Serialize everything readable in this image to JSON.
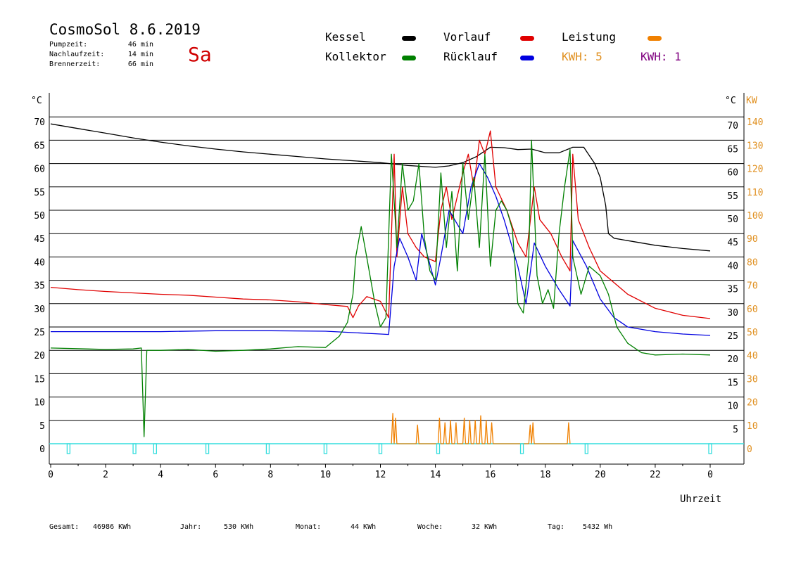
{
  "header": {
    "title": "CosmoSol 8.6.2019",
    "weekday": "Sa",
    "info": [
      {
        "label": "Pumpzeit:",
        "value": "46 min"
      },
      {
        "label": "Nachlaufzeit:",
        "value": "14 min"
      },
      {
        "label": "Brennerzeit:",
        "value": "66 min"
      }
    ]
  },
  "legend": {
    "kessel": {
      "label": "Kessel",
      "color": "#000000"
    },
    "vorlauf": {
      "label": "Vorlauf",
      "color": "#e00000"
    },
    "leistung": {
      "label": "Leistung",
      "color": "#f08000"
    },
    "kollektor": {
      "label": "Kollektor",
      "color": "#008000"
    },
    "ruecklauf": {
      "label": "Rücklauf",
      "color": "#0000e0"
    },
    "kwh_orange": "KWH: 5",
    "kwh_purple": "KWH: 1",
    "kwh_orange_color": "#e09020",
    "kwh_purple_color": "#800080"
  },
  "footer": {
    "gesamt_label": "Gesamt:",
    "gesamt_value": "46986 KWh",
    "jahr_label": "Jahr:",
    "jahr_value": "530 KWh",
    "monat_label": "Monat:",
    "monat_value": "44 KWh",
    "woche_label": "Woche:",
    "woche_value": "32 KWh",
    "tag_label": "Tag:",
    "tag_value": "5432 Wh"
  },
  "chart_data": {
    "type": "line",
    "xlabel": "Uhrzeit",
    "ylabel_left": "°C",
    "ylabel_right_c": "°C",
    "ylabel_right_kw": "KW",
    "xlim": [
      0,
      24
    ],
    "ylim": [
      0,
      70
    ],
    "grid": true,
    "x_ticks": [
      "0",
      "2",
      "4",
      "6",
      "8",
      "10",
      "12",
      "14",
      "16",
      "18",
      "20",
      "22",
      "0"
    ],
    "y_ticks_left": [
      "0",
      "5",
      "10",
      "15",
      "20",
      "25",
      "30",
      "35",
      "40",
      "45",
      "50",
      "55",
      "60",
      "65",
      "70"
    ],
    "y_ticks_right_c": [
      "",
      "5",
      "10",
      "15",
      "20",
      "25",
      "30",
      "35",
      "40",
      "45",
      "50",
      "55",
      "60",
      "65",
      "70"
    ],
    "y_ticks_right_kw": [
      "0",
      "10",
      "20",
      "30",
      "40",
      "50",
      "60",
      "70",
      "80",
      "90",
      "100",
      "110",
      "120",
      "130",
      "140"
    ],
    "series": [
      {
        "name": "Kessel",
        "color": "#000000",
        "x": [
          0,
          1,
          2,
          3,
          4,
          5,
          6,
          7,
          8,
          9,
          10,
          11,
          12,
          12.5,
          13,
          13.5,
          14,
          14.5,
          15,
          15.5,
          16,
          16.5,
          17,
          17.5,
          18,
          18.5,
          19,
          19.4,
          19.8,
          20,
          20.2,
          20.3,
          20.5,
          21,
          22,
          23,
          24
        ],
        "y": [
          68.5,
          67.5,
          66.5,
          65.5,
          64.6,
          63.8,
          63.1,
          62.5,
          62.0,
          61.5,
          61.0,
          60.6,
          60.2,
          59.9,
          59.6,
          59.4,
          59.2,
          59.5,
          60.2,
          61.5,
          63.5,
          63.4,
          63.0,
          63.1,
          62.3,
          62.3,
          63.5,
          63.5,
          60.0,
          57.0,
          51.0,
          45.0,
          44.0,
          43.5,
          42.5,
          41.8,
          41.3
        ]
      },
      {
        "name": "Vorlauf",
        "color": "#e00000",
        "x": [
          0,
          1,
          2,
          3,
          4,
          5,
          6,
          7,
          8,
          9,
          10,
          10.8,
          11,
          11.2,
          11.5,
          12,
          12.3,
          12.5,
          12.6,
          12.8,
          13,
          13.3,
          13.6,
          14,
          14.2,
          14.4,
          14.6,
          15,
          15.2,
          15.4,
          15.6,
          15.8,
          16,
          16.2,
          16.6,
          17,
          17.3,
          17.6,
          17.8,
          18.2,
          18.6,
          18.9,
          19,
          19.2,
          19.6,
          20,
          21,
          22,
          23,
          24
        ],
        "y": [
          33.5,
          33.0,
          32.6,
          32.3,
          32.0,
          31.8,
          31.4,
          31.0,
          30.8,
          30.4,
          29.8,
          29.4,
          27.0,
          29.5,
          31.5,
          30.5,
          27.0,
          62.0,
          40.0,
          55.0,
          45.0,
          42.0,
          40.0,
          39.0,
          50.0,
          55.0,
          48.0,
          58.0,
          62.0,
          55.0,
          65.0,
          62.0,
          67.0,
          55.0,
          50.0,
          43.0,
          40.0,
          55.0,
          48.0,
          45.0,
          40.0,
          37.0,
          62.0,
          48.0,
          42.0,
          37.0,
          32.0,
          29.0,
          27.5,
          26.8
        ]
      },
      {
        "name": "Rücklauf",
        "color": "#0000e0",
        "x": [
          0,
          2,
          4,
          6,
          8,
          10,
          12,
          12.3,
          12.5,
          12.7,
          13,
          13.3,
          13.5,
          14,
          14.2,
          14.5,
          15,
          15.3,
          15.6,
          15.9,
          16.2,
          16.5,
          17,
          17.3,
          17.6,
          18,
          18.5,
          18.9,
          19,
          19.5,
          20,
          20.5,
          21,
          22,
          23,
          24
        ],
        "y": [
          24.0,
          24.0,
          24.0,
          24.2,
          24.2,
          24.1,
          23.5,
          23.4,
          38.0,
          44.0,
          40.0,
          35.0,
          45.0,
          34.0,
          40.0,
          50.0,
          45.0,
          55.0,
          60.0,
          57.0,
          53.0,
          48.0,
          38.0,
          30.0,
          43.0,
          38.0,
          33.0,
          29.5,
          43.5,
          38.0,
          31.0,
          27.0,
          25.0,
          24.0,
          23.5,
          23.2
        ]
      },
      {
        "name": "Kollektor",
        "color": "#008000",
        "x": [
          0,
          2,
          3,
          3.3,
          3.4,
          3.5,
          4,
          5,
          6,
          7,
          8,
          9,
          10,
          10.5,
          10.8,
          11,
          11.1,
          11.3,
          11.5,
          11.8,
          12,
          12.2,
          12.4,
          12.6,
          12.8,
          13,
          13.2,
          13.4,
          13.6,
          13.8,
          14,
          14.2,
          14.4,
          14.6,
          14.8,
          15,
          15.2,
          15.4,
          15.6,
          15.8,
          16,
          16.2,
          16.4,
          16.6,
          16.8,
          17,
          17.2,
          17.4,
          17.5,
          17.7,
          17.9,
          18.1,
          18.3,
          18.5,
          18.7,
          18.9,
          19,
          19.3,
          19.6,
          20,
          20.3,
          20.6,
          21,
          21.5,
          22,
          23,
          24
        ],
        "y": [
          20.5,
          20.2,
          20.3,
          20.5,
          1.5,
          20.0,
          20.0,
          20.2,
          19.8,
          20.0,
          20.3,
          20.8,
          20.6,
          23.0,
          26.0,
          32.0,
          40.0,
          46.5,
          40.0,
          30.0,
          25.0,
          27.0,
          62.0,
          42.0,
          60.0,
          50.0,
          52.0,
          60.0,
          44.0,
          37.0,
          35.0,
          58.0,
          42.0,
          54.0,
          37.0,
          60.0,
          48.0,
          57.0,
          42.0,
          62.0,
          38.0,
          50.0,
          52.0,
          50.0,
          46.0,
          30.0,
          28.0,
          40.0,
          65.0,
          36.0,
          30.0,
          33.0,
          29.0,
          45.0,
          55.0,
          63.0,
          40.0,
          32.0,
          38.0,
          36.0,
          32.0,
          25.0,
          21.5,
          19.5,
          19.0,
          19.2,
          19.0
        ]
      },
      {
        "name": "Leistung",
        "color": "#f08000",
        "x": [
          12.4,
          12.45,
          12.5,
          12.55,
          12.6,
          12.65,
          13.3,
          13.35,
          13.4,
          14.1,
          14.15,
          14.2,
          14.3,
          14.35,
          14.4,
          14.5,
          14.55,
          14.6,
          14.7,
          14.75,
          14.8,
          15.0,
          15.05,
          15.1,
          15.2,
          15.25,
          15.3,
          15.4,
          15.45,
          15.5,
          15.6,
          15.65,
          15.7,
          15.8,
          15.85,
          15.9,
          16.0,
          16.05,
          16.1,
          17.4,
          17.45,
          17.5,
          17.55,
          17.6,
          18.8,
          18.85,
          18.9
        ],
        "y": [
          0,
          6.5,
          0,
          5.5,
          0,
          0,
          0,
          4.0,
          0,
          0,
          5.5,
          0,
          0,
          4.5,
          0,
          0,
          5.0,
          0,
          0,
          4.5,
          0,
          0,
          5.5,
          0,
          0,
          5.0,
          0,
          0,
          5.0,
          0,
          0,
          6.0,
          0,
          0,
          5.0,
          0,
          0,
          4.5,
          0,
          0,
          4.0,
          0,
          4.5,
          0,
          0,
          4.5,
          0
        ]
      }
    ]
  }
}
